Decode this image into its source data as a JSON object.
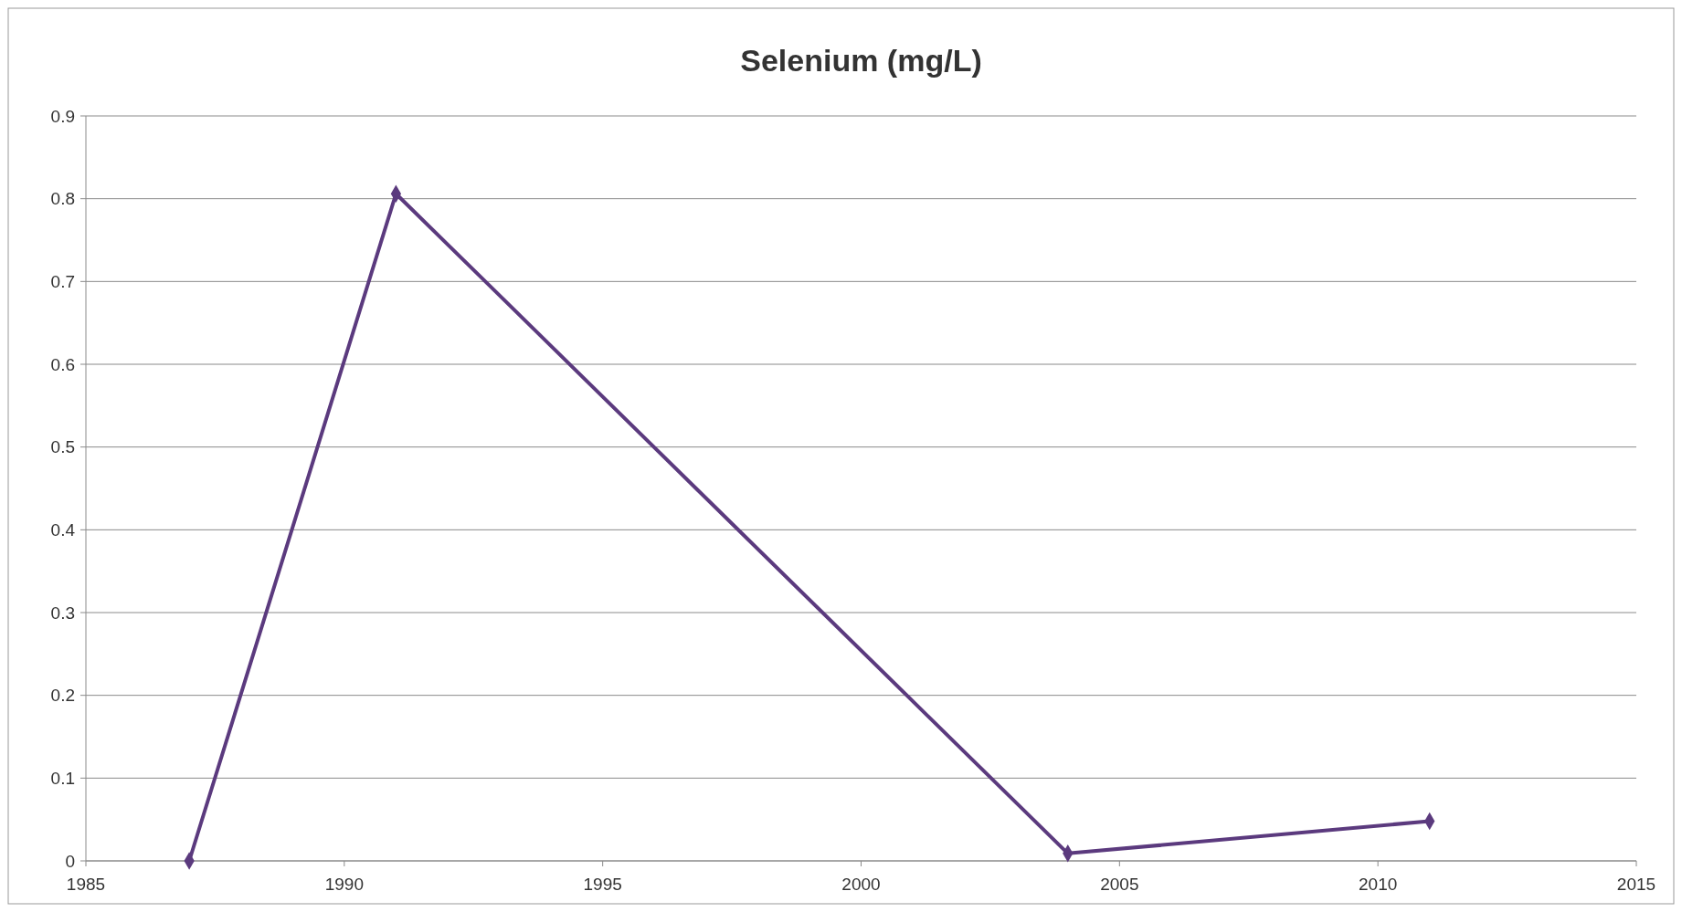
{
  "chart_data": {
    "type": "line",
    "title": "Selenium (mg/L)",
    "x": [
      1987,
      1991,
      2004,
      2011
    ],
    "series": [
      {
        "color": "#5b3a7e",
        "values": [
          0,
          0.806,
          0.009,
          0.048
        ]
      }
    ],
    "xlim": [
      1985,
      2015
    ],
    "xticks": [
      1985,
      1990,
      1995,
      2000,
      2005,
      2010,
      2015
    ],
    "ylim": [
      0,
      0.9
    ],
    "yticks": [
      0,
      0.1,
      0.2,
      0.3,
      0.4,
      0.5,
      0.6,
      0.7,
      0.8,
      0.9
    ],
    "grid": "y",
    "marker": "diamond",
    "line_style": "solid"
  }
}
